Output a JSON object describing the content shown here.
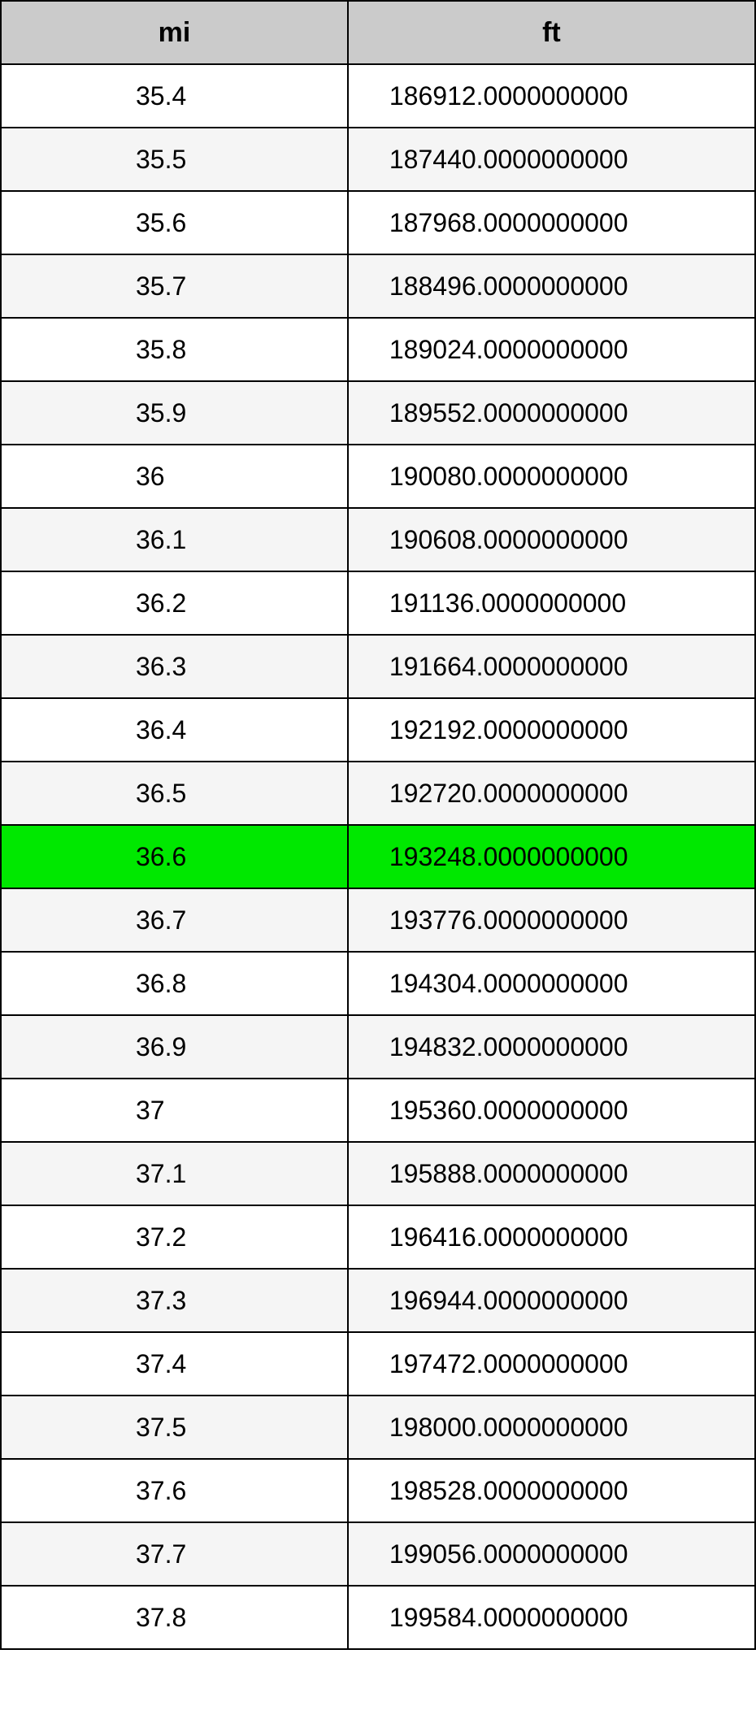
{
  "table": {
    "type": "table",
    "header_bg": "#cbcbcb",
    "row_bg_even": "#ffffff",
    "row_bg_odd": "#f5f5f5",
    "highlight_bg": "#00e800",
    "border_color": "#000000",
    "font_family": "Helvetica Neue",
    "header_fontsize_pt": 26,
    "cell_fontsize_pt": 24,
    "columns": [
      {
        "key": "mi",
        "label": "mi",
        "align": "center-ish",
        "width_pct": 46
      },
      {
        "key": "ft",
        "label": "ft",
        "align": "left",
        "width_pct": 54
      }
    ],
    "rows": [
      {
        "mi": "35.4",
        "ft": "186912.0000000000",
        "highlight": false
      },
      {
        "mi": "35.5",
        "ft": "187440.0000000000",
        "highlight": false
      },
      {
        "mi": "35.6",
        "ft": "187968.0000000000",
        "highlight": false
      },
      {
        "mi": "35.7",
        "ft": "188496.0000000000",
        "highlight": false
      },
      {
        "mi": "35.8",
        "ft": "189024.0000000000",
        "highlight": false
      },
      {
        "mi": "35.9",
        "ft": "189552.0000000000",
        "highlight": false
      },
      {
        "mi": "36",
        "ft": "190080.0000000000",
        "highlight": false
      },
      {
        "mi": "36.1",
        "ft": "190608.0000000000",
        "highlight": false
      },
      {
        "mi": "36.2",
        "ft": "191136.0000000000",
        "highlight": false
      },
      {
        "mi": "36.3",
        "ft": "191664.0000000000",
        "highlight": false
      },
      {
        "mi": "36.4",
        "ft": "192192.0000000000",
        "highlight": false
      },
      {
        "mi": "36.5",
        "ft": "192720.0000000000",
        "highlight": false
      },
      {
        "mi": "36.6",
        "ft": "193248.0000000000",
        "highlight": true
      },
      {
        "mi": "36.7",
        "ft": "193776.0000000000",
        "highlight": false
      },
      {
        "mi": "36.8",
        "ft": "194304.0000000000",
        "highlight": false
      },
      {
        "mi": "36.9",
        "ft": "194832.0000000000",
        "highlight": false
      },
      {
        "mi": "37",
        "ft": "195360.0000000000",
        "highlight": false
      },
      {
        "mi": "37.1",
        "ft": "195888.0000000000",
        "highlight": false
      },
      {
        "mi": "37.2",
        "ft": "196416.0000000000",
        "highlight": false
      },
      {
        "mi": "37.3",
        "ft": "196944.0000000000",
        "highlight": false
      },
      {
        "mi": "37.4",
        "ft": "197472.0000000000",
        "highlight": false
      },
      {
        "mi": "37.5",
        "ft": "198000.0000000000",
        "highlight": false
      },
      {
        "mi": "37.6",
        "ft": "198528.0000000000",
        "highlight": false
      },
      {
        "mi": "37.7",
        "ft": "199056.0000000000",
        "highlight": false
      },
      {
        "mi": "37.8",
        "ft": "199584.0000000000",
        "highlight": false
      }
    ]
  }
}
